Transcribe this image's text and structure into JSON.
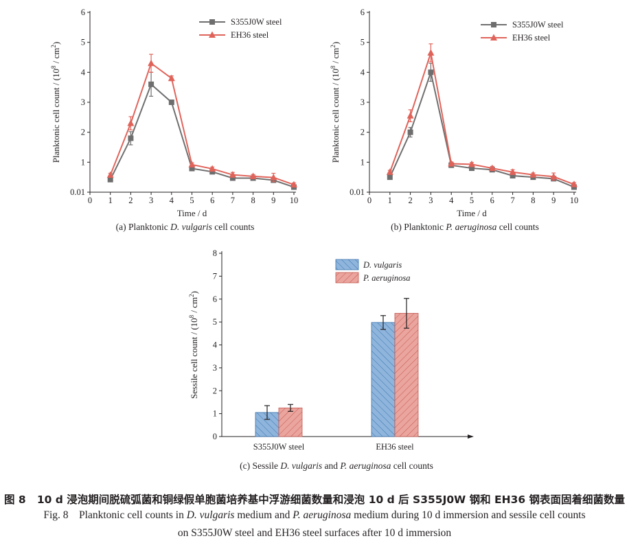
{
  "colors": {
    "s355": "#6e6e6e",
    "eh36": "#e0635a",
    "bar_dv": "#8fb5dc",
    "bar_dv_stroke": "#3a73ad",
    "bar_pa": "#eaa59e",
    "bar_pa_stroke": "#c4574e",
    "axis": "#231f20"
  },
  "chart_data": [
    {
      "id": "a",
      "type": "line",
      "caption_prefix": "(a) Planktonic ",
      "caption_species": "D. vulgaris",
      "caption_suffix": " cell counts",
      "xlabel": "Time / d",
      "ylabel_main": "Planktonic cell count / (10",
      "ylabel_sup": "8",
      "ylabel_mid": " / cm",
      "ylabel_sup2": "2",
      "ylabel_end": ")",
      "x_ticks": [
        "0",
        "1",
        "2",
        "3",
        "4",
        "5",
        "6",
        "7",
        "8",
        "9",
        "10"
      ],
      "y_ticks": [
        "0.01",
        "1",
        "2",
        "3",
        "4",
        "5",
        "6"
      ],
      "xlim": [
        0,
        10
      ],
      "ylim": [
        0,
        6
      ],
      "x": [
        1,
        2,
        3,
        4,
        5,
        6,
        7,
        8,
        9,
        10
      ],
      "series": [
        {
          "name": "S355J0W steel",
          "marker": "square",
          "values": [
            0.42,
            1.8,
            3.6,
            3.0,
            0.79,
            0.68,
            0.47,
            0.47,
            0.4,
            0.17
          ],
          "errors": [
            0.05,
            0.22,
            0.4,
            0.05,
            0.05,
            0.05,
            0.05,
            0.05,
            0.05,
            0.05
          ]
        },
        {
          "name": "EH36 steel",
          "marker": "triangle",
          "values": [
            0.57,
            2.3,
            4.3,
            3.8,
            0.92,
            0.78,
            0.58,
            0.53,
            0.49,
            0.25
          ],
          "errors": [
            0.06,
            0.22,
            0.3,
            0.08,
            0.06,
            0.06,
            0.08,
            0.06,
            0.14,
            0.06
          ]
        }
      ]
    },
    {
      "id": "b",
      "type": "line",
      "caption_prefix": "(b) Planktonic ",
      "caption_species": "P. aeruginosa",
      "caption_suffix": " cell counts",
      "xlabel": "Time / d",
      "ylabel_main": "Planktonic cell count / (10",
      "ylabel_sup": "8",
      "ylabel_mid": " / cm",
      "ylabel_sup2": "2",
      "ylabel_end": ")",
      "x_ticks": [
        "0",
        "1",
        "2",
        "3",
        "4",
        "5",
        "6",
        "7",
        "8",
        "9",
        "10"
      ],
      "y_ticks": [
        "0.01",
        "1",
        "2",
        "3",
        "4",
        "5",
        "6"
      ],
      "xlim": [
        0,
        10
      ],
      "ylim": [
        0,
        6
      ],
      "x": [
        1,
        2,
        3,
        4,
        5,
        6,
        7,
        8,
        9,
        10
      ],
      "series": [
        {
          "name": "S355J0W steel",
          "marker": "square",
          "values": [
            0.5,
            2.0,
            4.0,
            0.9,
            0.8,
            0.75,
            0.55,
            0.5,
            0.45,
            0.17
          ],
          "errors": [
            0.05,
            0.16,
            0.3,
            0.05,
            0.05,
            0.05,
            0.05,
            0.05,
            0.05,
            0.05
          ]
        },
        {
          "name": "EH36 steel",
          "marker": "triangle",
          "values": [
            0.67,
            2.55,
            4.65,
            0.95,
            0.93,
            0.8,
            0.67,
            0.58,
            0.52,
            0.26
          ],
          "errors": [
            0.06,
            0.2,
            0.3,
            0.06,
            0.06,
            0.06,
            0.08,
            0.06,
            0.12,
            0.06
          ]
        }
      ]
    },
    {
      "id": "c",
      "type": "bar",
      "caption_prefix": "(c) Sessile ",
      "caption_species": "D. vulgaris",
      "caption_mid": " and ",
      "caption_species2": "P. aeruginosa",
      "caption_suffix": " cell counts",
      "ylabel_main": "Sessile cell count / (10",
      "ylabel_sup": "8",
      "ylabel_mid": " / cm",
      "ylabel_sup2": "2",
      "ylabel_end": ")",
      "y_ticks": [
        "0",
        "1",
        "2",
        "3",
        "4",
        "5",
        "6",
        "7",
        "8"
      ],
      "ylim": [
        0,
        8
      ],
      "categories": [
        "S355J0W steel",
        "EH36 steel"
      ],
      "series": [
        {
          "name": "D. vulgaris",
          "values": [
            1.05,
            4.98
          ],
          "errors": [
            0.3,
            0.3
          ]
        },
        {
          "name": "P. aeruginosa",
          "values": [
            1.25,
            5.38
          ],
          "errors": [
            0.15,
            0.65
          ]
        }
      ]
    }
  ],
  "captions": {
    "cn_prefix": "图 8",
    "cn_text": "10 d 浸泡期间脱硫弧菌和铜绿假单胞菌培养基中浮游细菌数量和浸泡 10 d 后 S355J0W 钢和 EH36 钢表面固着细菌数量",
    "en1_a": "Fig. 8    Planktonic cell counts in ",
    "en1_sp1": "D. vulgaris",
    "en1_b": " medium and ",
    "en1_sp2": "P. aeruginosa",
    "en1_c": " medium during 10 d immersion and sessile cell counts",
    "en2": "on S355J0W steel and EH36 steel surfaces after 10 d immersion"
  }
}
